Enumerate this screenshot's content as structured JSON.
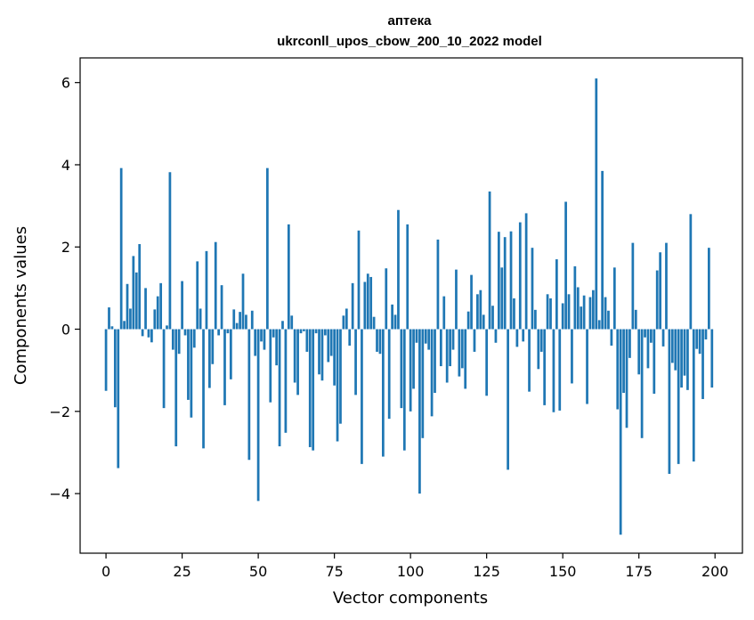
{
  "chart_data": {
    "type": "bar",
    "title": "аптека",
    "subtitle": "ukrconll_upos_cbow_200_10_2022 model",
    "xlabel": "Vector components",
    "ylabel": "Components values",
    "xlim": [
      -8.5,
      209
    ],
    "ylim": [
      -5.45,
      6.6
    ],
    "xticks": [
      0,
      25,
      50,
      75,
      100,
      125,
      150,
      175,
      200
    ],
    "xtick_labels": [
      "0",
      "25",
      "50",
      "75",
      "100",
      "125",
      "150",
      "175",
      "200"
    ],
    "yticks": [
      -4,
      -2,
      0,
      2,
      4,
      6
    ],
    "ytick_labels": [
      "−4",
      "−2",
      "0",
      "2",
      "4",
      "6"
    ],
    "bar_color": "#1f77b4",
    "grid": false,
    "legend": "none",
    "x": [
      0,
      1,
      2,
      3,
      4,
      5,
      6,
      7,
      8,
      9,
      10,
      11,
      12,
      13,
      14,
      15,
      16,
      17,
      18,
      19,
      20,
      21,
      22,
      23,
      24,
      25,
      26,
      27,
      28,
      29,
      30,
      31,
      32,
      33,
      34,
      35,
      36,
      37,
      38,
      39,
      40,
      41,
      42,
      43,
      44,
      45,
      46,
      47,
      48,
      49,
      50,
      51,
      52,
      53,
      54,
      55,
      56,
      57,
      58,
      59,
      60,
      61,
      62,
      63,
      64,
      65,
      66,
      67,
      68,
      69,
      70,
      71,
      72,
      73,
      74,
      75,
      76,
      77,
      78,
      79,
      80,
      81,
      82,
      83,
      84,
      85,
      86,
      87,
      88,
      89,
      90,
      91,
      92,
      93,
      94,
      95,
      96,
      97,
      98,
      99,
      100,
      101,
      102,
      103,
      104,
      105,
      106,
      107,
      108,
      109,
      110,
      111,
      112,
      113,
      114,
      115,
      116,
      117,
      118,
      119,
      120,
      121,
      122,
      123,
      124,
      125,
      126,
      127,
      128,
      129,
      130,
      131,
      132,
      133,
      134,
      135,
      136,
      137,
      138,
      139,
      140,
      141,
      142,
      143,
      144,
      145,
      146,
      147,
      148,
      149,
      150,
      151,
      152,
      153,
      154,
      155,
      156,
      157,
      158,
      159,
      160,
      161,
      162,
      163,
      164,
      165,
      166,
      167,
      168,
      169,
      170,
      171,
      172,
      173,
      174,
      175,
      176,
      177,
      178,
      179,
      180,
      181,
      182,
      183,
      184,
      185,
      186,
      187,
      188,
      189,
      190,
      191,
      192,
      193,
      194,
      195,
      196,
      197,
      198,
      199
    ],
    "values": [
      -1.5,
      0.53,
      0.07,
      -1.9,
      -3.38,
      3.92,
      0.2,
      1.1,
      0.5,
      1.78,
      1.38,
      2.07,
      -0.17,
      1.0,
      -0.2,
      -0.32,
      0.48,
      0.8,
      1.12,
      -1.92,
      0.09,
      3.82,
      -0.5,
      -2.85,
      -0.6,
      1.17,
      -0.15,
      -1.72,
      -2.15,
      -0.45,
      1.65,
      0.5,
      -2.9,
      1.9,
      -1.43,
      -0.85,
      2.12,
      -0.15,
      1.07,
      -1.85,
      -0.1,
      -1.22,
      0.48,
      0.15,
      0.42,
      1.35,
      0.35,
      -3.18,
      0.45,
      -0.65,
      -4.18,
      -0.3,
      -0.5,
      3.92,
      -1.78,
      -0.2,
      -0.88,
      -2.85,
      0.2,
      -2.52,
      2.55,
      0.33,
      -1.3,
      -1.6,
      -0.1,
      -0.05,
      -0.55,
      -2.87,
      -2.95,
      -0.1,
      -1.1,
      -1.25,
      -0.15,
      -0.8,
      -0.65,
      -1.37,
      -2.73,
      -2.3,
      0.33,
      0.5,
      -0.4,
      1.12,
      -1.6,
      2.4,
      -3.28,
      1.15,
      1.35,
      1.27,
      0.3,
      -0.55,
      -0.6,
      -3.1,
      1.48,
      -2.18,
      0.6,
      0.35,
      2.9,
      -1.92,
      -2.95,
      2.55,
      -2.0,
      -1.45,
      -0.33,
      -4.0,
      -2.65,
      -0.35,
      -0.5,
      -2.12,
      -1.55,
      2.18,
      -0.9,
      0.8,
      -1.3,
      -0.9,
      -0.5,
      1.45,
      -1.15,
      -0.95,
      -1.45,
      0.43,
      1.32,
      -0.55,
      0.85,
      0.95,
      0.35,
      -1.62,
      3.35,
      0.57,
      -0.33,
      2.37,
      1.5,
      2.24,
      -3.42,
      2.38,
      0.75,
      -0.43,
      2.6,
      -0.3,
      2.82,
      -1.52,
      1.98,
      0.47,
      -0.97,
      -0.55,
      -1.85,
      0.85,
      0.75,
      -2.02,
      1.7,
      -1.98,
      0.63,
      3.1,
      0.85,
      -1.32,
      1.53,
      1.02,
      0.55,
      0.82,
      -1.82,
      0.78,
      0.95,
      6.1,
      0.22,
      3.85,
      0.78,
      0.45,
      -0.4,
      1.5,
      -1.95,
      -5.0,
      -1.55,
      -2.4,
      -0.7,
      2.1,
      0.47,
      -1.1,
      -2.65,
      -0.2,
      -0.95,
      -0.33,
      -1.57,
      1.43,
      1.87,
      -0.42,
      2.1,
      -3.52,
      -0.82,
      -1.0,
      -3.28,
      -1.42,
      -1.13,
      -1.48,
      2.8,
      -3.22,
      -0.48,
      -0.6,
      -1.7,
      -0.25,
      1.98,
      -1.42
    ]
  }
}
